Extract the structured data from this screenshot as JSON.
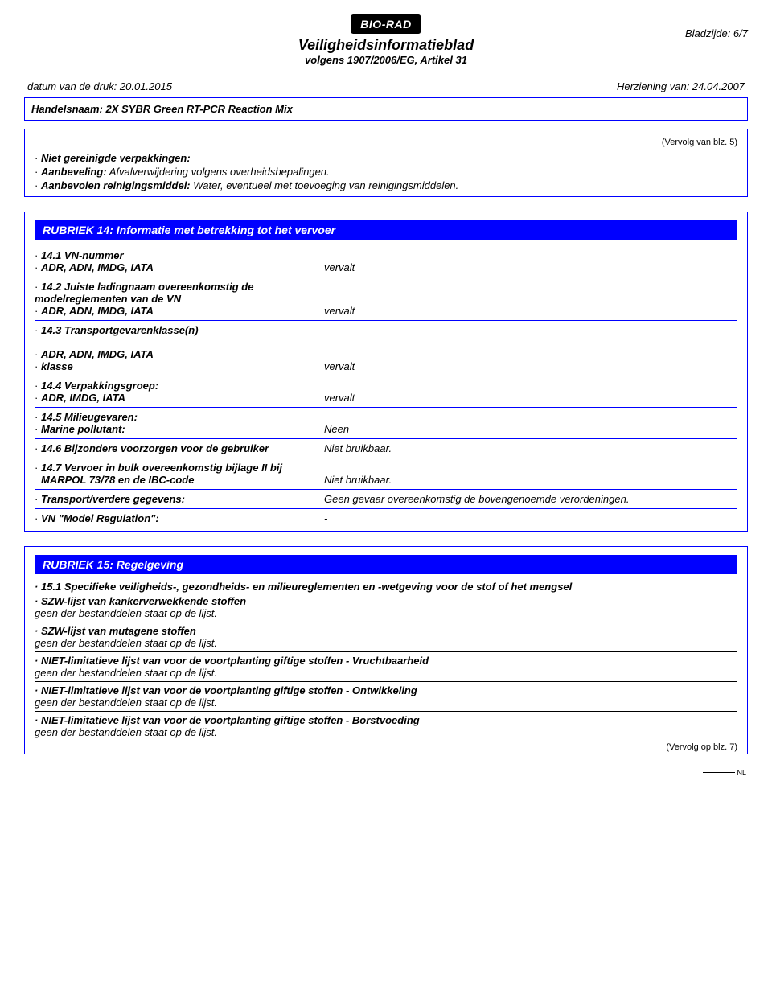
{
  "header": {
    "logo": "BIO-RAD",
    "title": "Veiligheidsinformatieblad",
    "subtitle": "volgens 1907/2006/EG, Artikel 31",
    "pageLabel": "Bladzijde: 6/7",
    "printDate": "datum van de druk: 20.01.2015",
    "revision": "Herziening van: 24.04.2007",
    "tradeName": "Handelsnaam: 2X SYBR Green RT-PCR Reaction Mix"
  },
  "topBox": {
    "continuedFrom": "(Vervolg van blz. 5)",
    "lines": [
      {
        "label": "Niet gereinigde verpakkingen:",
        "val": ""
      },
      {
        "label": "Aanbeveling:",
        "val": " Afvalverwijdering volgens overheidsbepalingen."
      },
      {
        "label": "Aanbevolen reinigingsmiddel:",
        "val": " Water, eventueel met toevoeging van reinigingsmiddelen."
      }
    ]
  },
  "section14": {
    "heading": "RUBRIEK 14: Informatie met betrekking tot het vervoer",
    "rows": [
      {
        "labels": [
          "14.1 VN-nummer",
          "ADR, ADN, IMDG, IATA"
        ],
        "val": "vervalt"
      },
      {
        "labels": [
          "14.2 Juiste ladingnaam overeenkomstig de modelreglementen van de VN",
          "ADR, ADN, IMDG, IATA"
        ],
        "val": "vervalt",
        "valOnSecond": true
      },
      {
        "labels": [
          "14.3 Transportgevarenklasse(n)",
          "",
          "ADR, ADN, IMDG, IATA",
          "klasse"
        ],
        "val": "vervalt",
        "valOnLast": true
      },
      {
        "labels": [
          "14.4 Verpakkingsgroep:",
          "ADR, IMDG, IATA"
        ],
        "val": "vervalt"
      },
      {
        "labels": [
          "14.5 Milieugevaren:",
          "Marine pollutant:"
        ],
        "val": "Neen"
      },
      {
        "labels": [
          "14.6 Bijzondere voorzorgen voor de gebruiker"
        ],
        "val": "Niet bruikbaar.",
        "valOnFirst": true
      },
      {
        "labels": [
          "14.7 Vervoer in bulk overeenkomstig bijlage II bij",
          "MARPOL 73/78 en de IBC-code"
        ],
        "val": "Niet bruikbaar.",
        "noBulletSecond": true
      },
      {
        "labels": [
          "Transport/verdere gegevens:"
        ],
        "val": "Geen gevaar overeenkomstig de bovengenoemde verordeningen.",
        "valOnFirst": true
      },
      {
        "labels": [
          "VN \"Model Regulation\":"
        ],
        "val": "-",
        "valOnFirst": true
      }
    ]
  },
  "section15": {
    "heading": "RUBRIEK 15: Regelgeving",
    "intro": "15.1 Specifieke veiligheids-, gezondheids- en milieureglementen en -wetgeving voor de stof of het mengsel",
    "items": [
      {
        "label": "SZW-lijst van kankerverwekkende stoffen",
        "val": "geen der bestanddelen staat op de lijst."
      },
      {
        "label": "SZW-lijst van mutagene stoffen",
        "val": "geen der bestanddelen staat op de lijst."
      },
      {
        "label": "NIET-limitatieve lijst van voor de voortplanting giftige stoffen - Vruchtbaarheid",
        "val": "geen der bestanddelen staat op de lijst."
      },
      {
        "label": "NIET-limitatieve lijst van voor de voortplanting giftige stoffen - Ontwikkeling",
        "val": "geen der bestanddelen staat op de lijst."
      },
      {
        "label": "NIET-limitatieve lijst van voor de voortplanting giftige stoffen - Borstvoeding",
        "val": "geen der bestanddelen staat op de lijst."
      }
    ],
    "continuedOn": "(Vervolg op blz. 7)",
    "locale": "NL"
  }
}
